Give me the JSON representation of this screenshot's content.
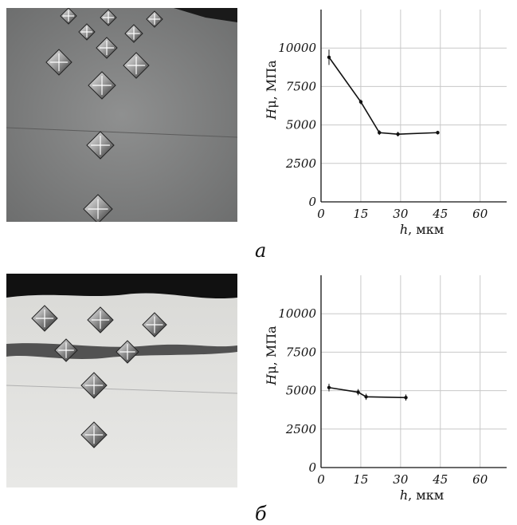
{
  "panels": [
    {
      "label": "а",
      "image": "microhardness indentation micrograph"
    },
    {
      "label": "б",
      "image": "microhardness indentation micrograph with dark surface band"
    }
  ],
  "chart_data": [
    {
      "type": "line",
      "title": "",
      "xlabel_italic": "h",
      "xlabel_rest": ", мкм",
      "ylabel_italic": "H",
      "ylabel_rest": "μ, МПа",
      "xlim": [
        0,
        70
      ],
      "ylim": [
        0,
        12500
      ],
      "xticks": [
        0,
        15,
        30,
        45,
        60
      ],
      "yticks": [
        0,
        2500,
        5000,
        7500,
        10000
      ],
      "grid": true,
      "series": [
        {
          "x": [
            3,
            15,
            22,
            29,
            44
          ],
          "y": [
            9400,
            6500,
            4500,
            4400,
            4500
          ],
          "err": [
            500,
            150,
            150,
            150,
            120
          ]
        }
      ]
    },
    {
      "type": "line",
      "title": "",
      "xlabel_italic": "h",
      "xlabel_rest": ", мкм",
      "ylabel_italic": "H",
      "ylabel_rest": "μ, МПа",
      "xlim": [
        0,
        70
      ],
      "ylim": [
        0,
        12500
      ],
      "xticks": [
        0,
        15,
        30,
        45,
        60
      ],
      "yticks": [
        0,
        2500,
        5000,
        7500,
        10000
      ],
      "grid": true,
      "series": [
        {
          "x": [
            3,
            14,
            17,
            32
          ],
          "y": [
            5200,
            4900,
            4600,
            4550
          ],
          "err": [
            250,
            200,
            200,
            200
          ]
        }
      ]
    }
  ]
}
